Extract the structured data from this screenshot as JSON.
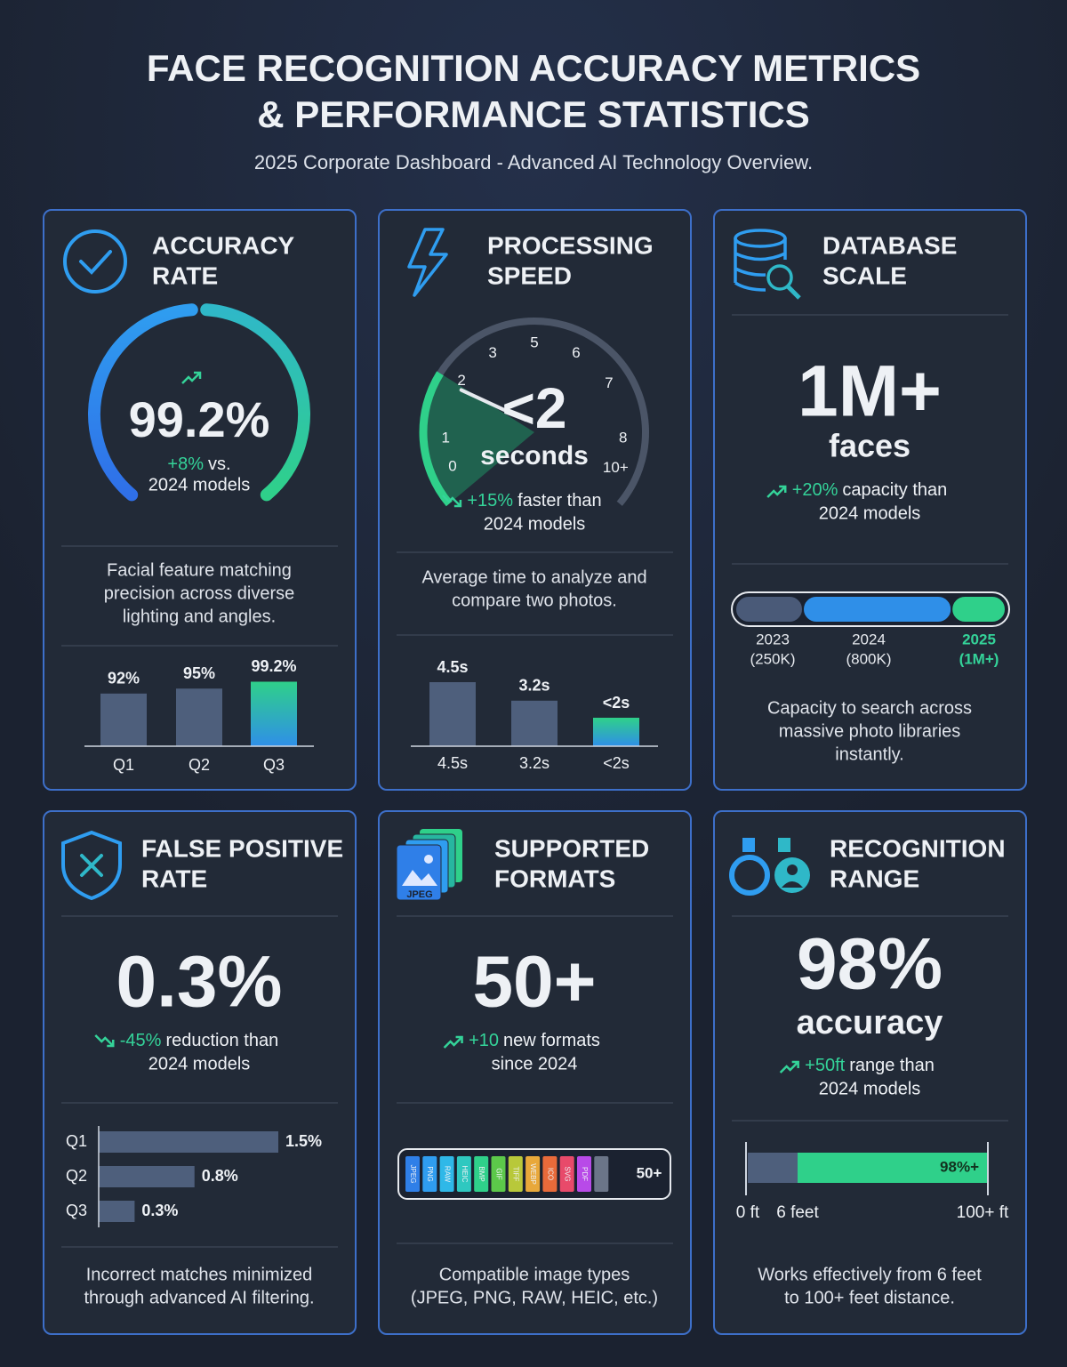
{
  "header": {
    "title_lines": [
      "FACE RECOGNITION ACCURACY METRICS",
      "& PERFORMANCE STATISTICS"
    ],
    "subtitle": "2025 Corporate Dashboard - Advanced AI Technology Overview."
  },
  "cards": [
    {
      "title_lines": [
        "ACCURACY",
        "RATE"
      ],
      "headline": "99.2%",
      "change": "+8%",
      "change_text": "vs.",
      "change_line2": "2024 models",
      "description_lines": [
        "Facial feature matching",
        "precision across diverse",
        "lighting and angles."
      ]
    },
    {
      "title_lines": [
        "PROCESSING",
        "SPEED"
      ],
      "headline": "<2",
      "unit": "seconds",
      "dial_labels": [
        "0",
        "1",
        "2",
        "3",
        "5",
        "6",
        "7",
        "8",
        "10+"
      ],
      "change": "+15%",
      "change_text": "faster than",
      "change_line2": "2024 models",
      "description_lines": [
        "Average time to analyze and",
        "compare two photos."
      ]
    },
    {
      "title_lines": [
        "DATABASE",
        "SCALE"
      ],
      "headline": "1M+",
      "unit": "faces",
      "change": "+20%",
      "change_text": "capacity than",
      "change_line2": "2024 models",
      "description_lines": [
        "Capacity to search across",
        "massive photo libraries",
        "instantly."
      ]
    },
    {
      "title_lines": [
        "FALSE POSITIVE",
        "RATE"
      ],
      "headline": "0.3%",
      "change": "-45%",
      "change_text": "reduction than",
      "change_line2": "2024 models",
      "description_lines": [
        "Incorrect matches minimized",
        "through advanced AI filtering."
      ]
    },
    {
      "title_lines": [
        "SUPPORTED",
        "FORMATS"
      ],
      "icon_label": "JPEG",
      "headline": "50+",
      "change": "+10",
      "change_text": "new formats",
      "change_line2": "since 2024",
      "format_labels": [
        "JPEG",
        "PNG",
        "RAW",
        "HEIC",
        "BMP",
        "GIF",
        "TIFF",
        "WEBP",
        "ICO",
        "SVG",
        "PDF"
      ],
      "format_count": "50+",
      "description_lines": [
        "Compatible image types",
        "(JPEG, PNG, RAW, HEIC, etc.)"
      ]
    },
    {
      "title_lines": [
        "RECOGNITION",
        "RANGE"
      ],
      "headline": "98%",
      "unit": "accuracy",
      "change": "+50ft",
      "change_text": "range than",
      "change_line2": "2024 models",
      "range_labels": [
        "0 ft",
        "6 feet",
        "100+ ft"
      ],
      "range_bar_label": "98%+",
      "description_lines": [
        "Works effectively from 6 feet",
        "to 100+ feet distance."
      ]
    }
  ],
  "chart_data": [
    {
      "type": "bar",
      "categories": [
        "Q1",
        "Q2",
        "Q3"
      ],
      "values": [
        92,
        95,
        99.2
      ],
      "value_labels": [
        "92%",
        "95%",
        "99.2%"
      ],
      "ylim": [
        60,
        100
      ],
      "colors": [
        "#4e5f7c",
        "#4e5f7c",
        "#2fd08a"
      ]
    },
    {
      "type": "bar",
      "categories": [
        "4.5s",
        "3.2s",
        "<2s"
      ],
      "values": [
        4.5,
        3.2,
        2
      ],
      "value_labels": [
        "4.5s",
        "3.2s",
        "<2s"
      ],
      "ylim": [
        0,
        5
      ],
      "colors": [
        "#4e5f7c",
        "#4e5f7c",
        "#2fd08a"
      ]
    },
    {
      "type": "progress",
      "categories": [
        "2023",
        "2024",
        "2025"
      ],
      "values": [
        250000,
        800000,
        1000000
      ],
      "value_labels": [
        "(250K)",
        "(800K)",
        "(1M+)"
      ],
      "xlim": [
        0,
        1000000
      ],
      "colors": [
        "#4a5a78",
        "#2f8fe8",
        "#2fd08a"
      ]
    },
    {
      "type": "hbar",
      "categories": [
        "Q1",
        "Q2",
        "Q3"
      ],
      "values": [
        1.5,
        0.8,
        0.3
      ],
      "value_labels": [
        "1.5%",
        "0.8%",
        "0.3%"
      ],
      "xlim": [
        0,
        1.5
      ],
      "color": "#4e5f7c"
    }
  ]
}
